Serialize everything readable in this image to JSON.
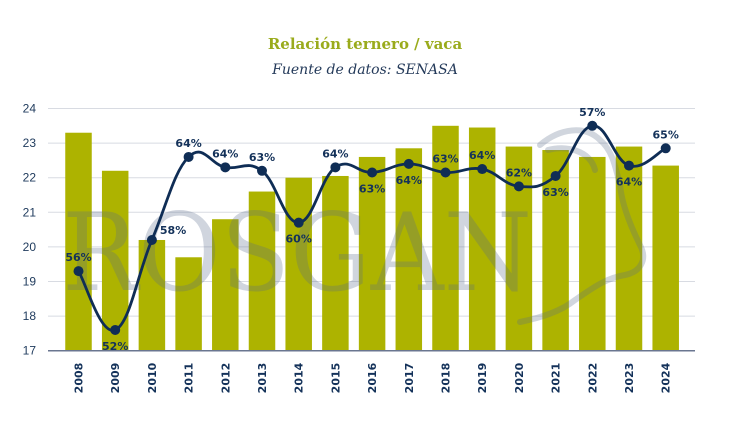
{
  "chart_data": {
    "type": "bar",
    "title": "Relación ternero / vaca",
    "subtitle": "Fuente de datos: SENASA",
    "xlabel": "",
    "ylabel": "",
    "ylim": [
      17,
      24
    ],
    "yticks": [
      "17",
      "18",
      "19",
      "20",
      "21",
      "22",
      "23",
      "24"
    ],
    "grid": true,
    "categories": [
      "2008",
      "2009",
      "2010",
      "2011",
      "2012",
      "2013",
      "2014",
      "2015",
      "2016",
      "2017",
      "2018",
      "2019",
      "2020",
      "2021",
      "2022",
      "2023",
      "2024"
    ],
    "series": [
      {
        "name": "bars",
        "type": "bar",
        "color": "#adb300",
        "values": [
          23.3,
          22.2,
          20.2,
          19.7,
          20.8,
          21.6,
          22.0,
          22.05,
          22.6,
          22.85,
          23.5,
          23.45,
          22.9,
          22.8,
          22.6,
          22.9,
          22.35
        ]
      },
      {
        "name": "line",
        "type": "line",
        "color": "#0f2d55",
        "values": [
          19.3,
          17.6,
          20.2,
          22.6,
          22.3,
          22.2,
          20.7,
          22.3,
          22.15,
          22.4,
          22.15,
          22.25,
          21.75,
          22.05,
          23.5,
          22.35,
          22.85
        ],
        "labels": [
          "56%",
          "52%",
          "58%",
          "64%",
          "64%",
          "63%",
          "60%",
          "64%",
          "63%",
          "64%",
          "63%",
          "64%",
          "62%",
          "63%",
          "57%",
          "64%",
          "65%"
        ],
        "label_side": [
          "above",
          "below",
          "right",
          "above",
          "above",
          "above",
          "below",
          "above",
          "below",
          "below",
          "above",
          "above",
          "above",
          "below",
          "above",
          "below",
          "above"
        ]
      }
    ],
    "watermark": "ROSGAN"
  }
}
